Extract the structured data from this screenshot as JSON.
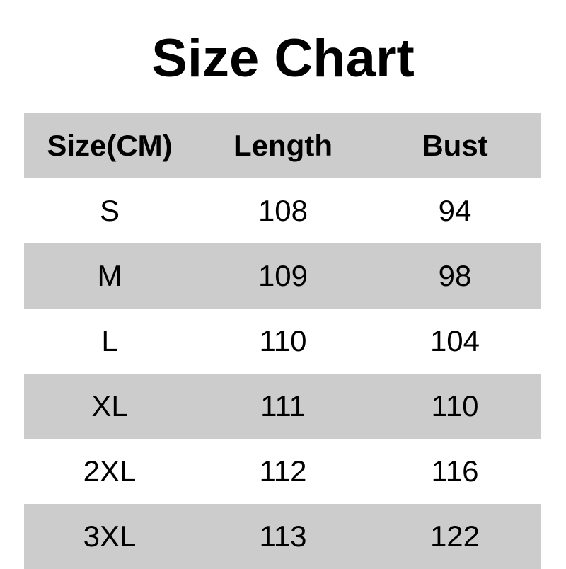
{
  "title": "Size Chart",
  "table": {
    "headers": [
      "Size(CM)",
      "Length",
      "Bust"
    ],
    "rows": [
      [
        "S",
        "108",
        "94"
      ],
      [
        "M",
        "109",
        "98"
      ],
      [
        "L",
        "110",
        "104"
      ],
      [
        "XL",
        "111",
        "110"
      ],
      [
        "2XL",
        "112",
        "116"
      ],
      [
        "3XL",
        "113",
        "122"
      ]
    ]
  },
  "colors": {
    "stripe": "#cccccc",
    "background": "#ffffff",
    "text": "#000000"
  }
}
